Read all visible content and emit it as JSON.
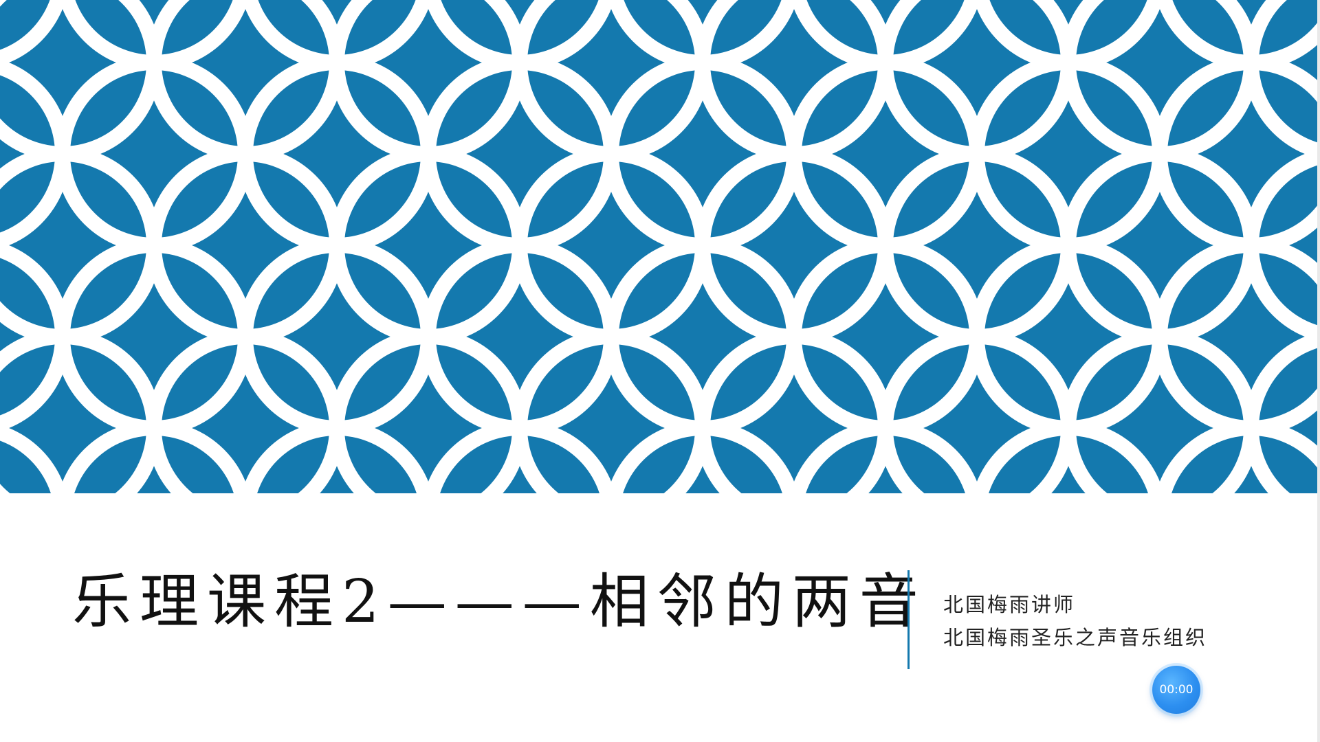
{
  "slide": {
    "title": "乐理课程2———相邻的两音",
    "subtitle_lines": [
      "北国梅雨讲师",
      "北国梅雨圣乐之声音乐组织"
    ],
    "accent_color": "#1479ae",
    "pattern_ring_color": "#ffffff",
    "background_color": "#ffffff"
  },
  "timer": {
    "label": "00:00",
    "color": "#2d8ff0"
  }
}
